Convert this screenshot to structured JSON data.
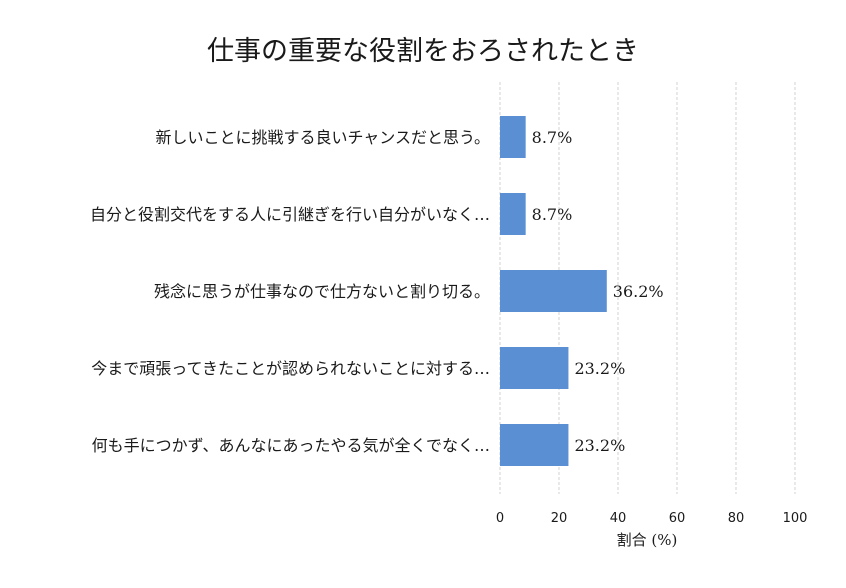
{
  "chart_data": {
    "type": "bar",
    "orientation": "horizontal",
    "title": "仕事の重要な役割をおろされたとき",
    "xlabel": "割合 (%)",
    "ylabel": "",
    "xlim": [
      0,
      100
    ],
    "xticks": [
      "0",
      "20",
      "40",
      "60",
      "80",
      "100"
    ],
    "grid": true,
    "legend": "none",
    "bar_color": "#5b8fd4",
    "categories": [
      "新しいことに挑戦する良いチャンスだと思う。",
      "自分と役割交代をする人に引継ぎを行い自分がいなく…",
      "残念に思うが仕事なので仕方ないと割り切る。",
      "今まで頑張ってきたことが認められないことに対する…",
      "何も手につかず、あんなにあったやる気が全くでなく…"
    ],
    "values": [
      8.7,
      8.7,
      36.2,
      23.2,
      23.2
    ],
    "value_labels": [
      "8.7%",
      "8.7%",
      "36.2%",
      "23.2%",
      "23.2%"
    ]
  }
}
